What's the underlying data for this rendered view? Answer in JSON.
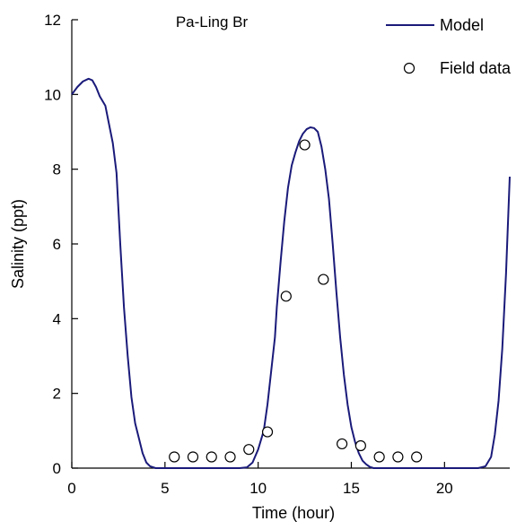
{
  "chart_data": {
    "type": "line",
    "title": "Pa-Ling Br",
    "xlabel": "Time (hour)",
    "ylabel": "Salinity (ppt)",
    "xlim": [
      0,
      23.5
    ],
    "ylim": [
      0,
      12
    ],
    "xticks": [
      0,
      5,
      10,
      15,
      20
    ],
    "yticks": [
      0,
      2,
      4,
      6,
      8,
      10,
      12
    ],
    "legend_position": "top-right",
    "grid": false,
    "colors": {
      "model": "#1a1a7a",
      "field": "#000000"
    },
    "series": [
      {
        "name": "Model",
        "style": "line",
        "x": [
          0,
          0.3,
          0.6,
          0.9,
          1.1,
          1.3,
          1.5,
          1.8,
          2.0,
          2.2,
          2.4,
          2.6,
          2.8,
          3.0,
          3.2,
          3.4,
          3.6,
          3.8,
          4.0,
          4.2,
          4.5,
          5.0,
          6.0,
          7.0,
          8.0,
          9.0,
          9.4,
          9.7,
          10.0,
          10.3,
          10.5,
          10.7,
          10.9,
          11.0,
          11.2,
          11.4,
          11.6,
          11.8,
          12.0,
          12.2,
          12.4,
          12.6,
          12.8,
          13.0,
          13.2,
          13.4,
          13.6,
          13.8,
          14.0,
          14.2,
          14.4,
          14.6,
          14.8,
          15.0,
          15.2,
          15.4,
          15.6,
          15.8,
          16.0,
          16.2,
          16.4,
          17.0,
          18.0,
          19.0,
          20.0,
          21.0,
          21.8,
          22.2,
          22.5,
          22.7,
          22.9,
          23.1,
          23.3,
          23.5
        ],
        "y": [
          10.0,
          10.2,
          10.35,
          10.42,
          10.38,
          10.2,
          9.95,
          9.7,
          9.2,
          8.7,
          7.9,
          6.0,
          4.3,
          3.0,
          1.9,
          1.2,
          0.8,
          0.4,
          0.15,
          0.05,
          0.0,
          0.0,
          0.0,
          0.0,
          0.0,
          0.0,
          0.02,
          0.15,
          0.5,
          1.0,
          1.7,
          2.6,
          3.5,
          4.3,
          5.5,
          6.6,
          7.5,
          8.1,
          8.45,
          8.75,
          8.95,
          9.07,
          9.12,
          9.1,
          9.0,
          8.6,
          8.0,
          7.2,
          6.0,
          4.7,
          3.5,
          2.5,
          1.7,
          1.1,
          0.7,
          0.4,
          0.2,
          0.1,
          0.03,
          0.0,
          0.0,
          0.0,
          0.0,
          0.0,
          0.0,
          0.0,
          0.0,
          0.05,
          0.3,
          0.9,
          1.8,
          3.2,
          5.2,
          7.8
        ]
      },
      {
        "name": "Field data",
        "style": "marker",
        "x": [
          5.5,
          6.5,
          7.5,
          8.5,
          9.5,
          10.5,
          11.5,
          12.5,
          13.5,
          14.5,
          15.5,
          16.5,
          17.5,
          18.5
        ],
        "y": [
          0.3,
          0.3,
          0.3,
          0.3,
          0.5,
          0.97,
          4.6,
          8.65,
          5.05,
          0.65,
          0.6,
          0.3,
          0.3,
          0.3
        ]
      }
    ]
  }
}
